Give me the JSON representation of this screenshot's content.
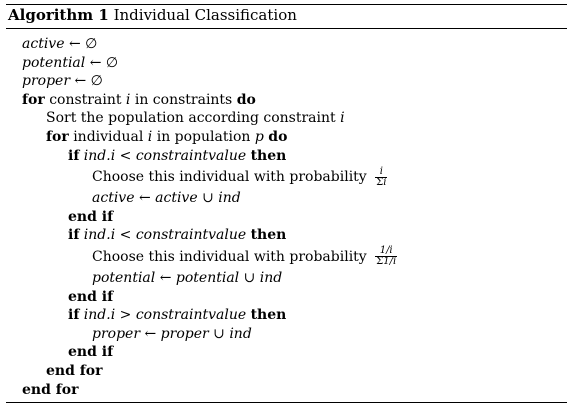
{
  "caption": {
    "label": "Algorithm 1",
    "title": "Individual Classification"
  },
  "lines": {
    "l1": {
      "var": "active",
      "op": "←",
      "val": "∅"
    },
    "l2": {
      "var": "potential",
      "op": "←",
      "val": "∅"
    },
    "l3": {
      "var": "proper",
      "op": "←",
      "val": "∅"
    },
    "l4": {
      "kw_for": "for",
      "t1": "constraint",
      "var": "i",
      "t2": "in constraints",
      "kw_do": "do"
    },
    "l5": {
      "text": "Sort the population according constraint",
      "var": "i"
    },
    "l6": {
      "kw_for": "for",
      "t1": "individual",
      "var": "i",
      "t2": "in population",
      "var2": "p",
      "kw_do": "do"
    },
    "l7": {
      "kw_if": "if",
      "lhs": "ind.i",
      "op": "<",
      "rhs": "constraintvalue",
      "kw_then": "then"
    },
    "l8": {
      "text": "Choose this individual with probability",
      "num": "i",
      "den_sym": "Σ",
      "den_var": "i"
    },
    "l9": {
      "var": "active",
      "op": "←",
      "rhs": "active ∪ ind"
    },
    "l10": {
      "text": "end if"
    },
    "l11": {
      "kw_if": "if",
      "lhs": "ind.i",
      "op": "<",
      "rhs": "constraintvalue",
      "kw_then": "then"
    },
    "l12": {
      "text": "Choose this individual with probability",
      "num": "1/i",
      "den_sym": "Σ",
      "den_var": "1/i"
    },
    "l13": {
      "var": "potential",
      "op": "←",
      "rhs": "potential ∪ ind"
    },
    "l14": {
      "text": "end if"
    },
    "l15": {
      "kw_if": "if",
      "lhs": "ind.i",
      "op": ">",
      "rhs": "constraintvalue",
      "kw_then": "then"
    },
    "l16": {
      "var": "proper",
      "op": "←",
      "rhs": "proper ∪ ind"
    },
    "l17": {
      "text": "end if"
    },
    "l18": {
      "text": "end for"
    },
    "l19": {
      "text": "end for"
    }
  }
}
